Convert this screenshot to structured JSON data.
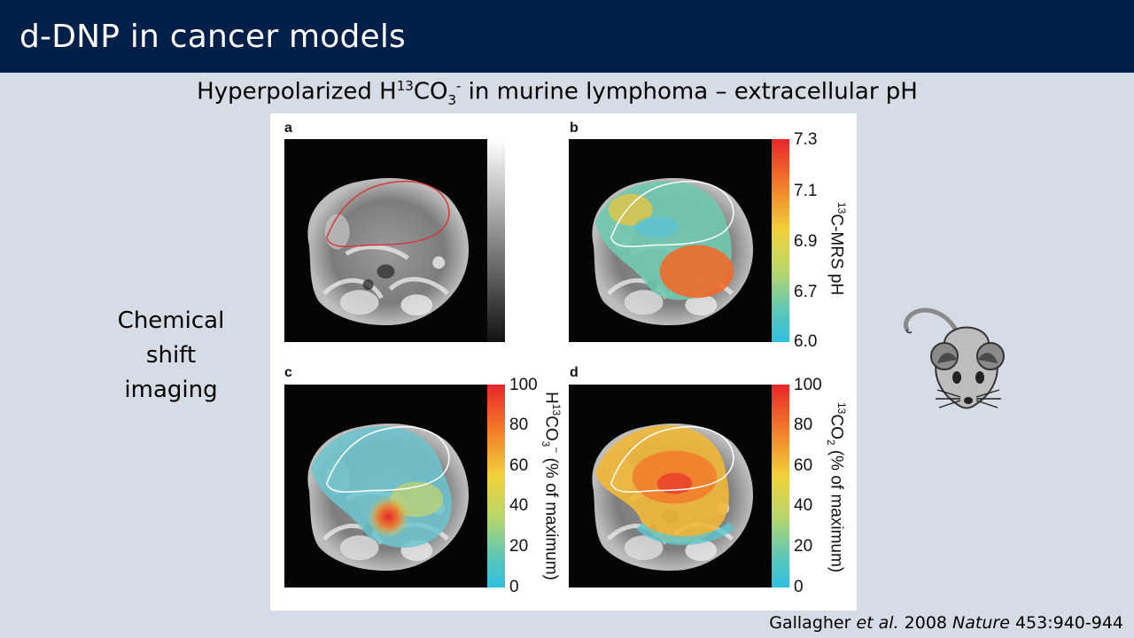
{
  "slide": {
    "title": "d-DNP in cancer models",
    "subtitle": {
      "pre": "Hyperpolarized H",
      "sup": "13",
      "mid": "CO",
      "sub": "3",
      "sup2": "-",
      "post": " in murine lymphoma – extracellular pH"
    },
    "side_text": [
      "Chemical",
      "shift",
      "imaging"
    ],
    "citation": {
      "author": "Gallagher ",
      "etal": "et al.",
      "year": " 2008 ",
      "journal": "Nature",
      "ref": " 453:940-944"
    }
  },
  "figure": {
    "panels": [
      {
        "letter": "a",
        "colorbar": "grayscale"
      },
      {
        "letter": "b",
        "colorbar_ticks": [
          "7.3",
          "7.1",
          "6.9",
          "6.7",
          "6.0"
        ],
        "colorbar_label": {
          "sup": "13",
          "text": "C-MRS pH"
        }
      },
      {
        "letter": "c",
        "colorbar_ticks": [
          "100",
          "80",
          "60",
          "40",
          "20",
          "0"
        ],
        "colorbar_label": {
          "pre": "H",
          "sup": "13",
          "mid": "CO",
          "sub": "3",
          "sup2": "−",
          "post": " (% of maximum)"
        }
      },
      {
        "letter": "d",
        "colorbar_ticks": [
          "100",
          "80",
          "60",
          "40",
          "20",
          "0"
        ],
        "colorbar_label": {
          "sup": "13",
          "mid": "CO",
          "sub": "2",
          "post": " (% of maximum)"
        }
      }
    ]
  },
  "colors": {
    "title_bar": "#00204a",
    "background": "#d6dce5",
    "roi_outline_a": "#d23b3b",
    "roi_outline": "#ffffff"
  },
  "icons": {
    "mouse": "mouse-icon"
  }
}
